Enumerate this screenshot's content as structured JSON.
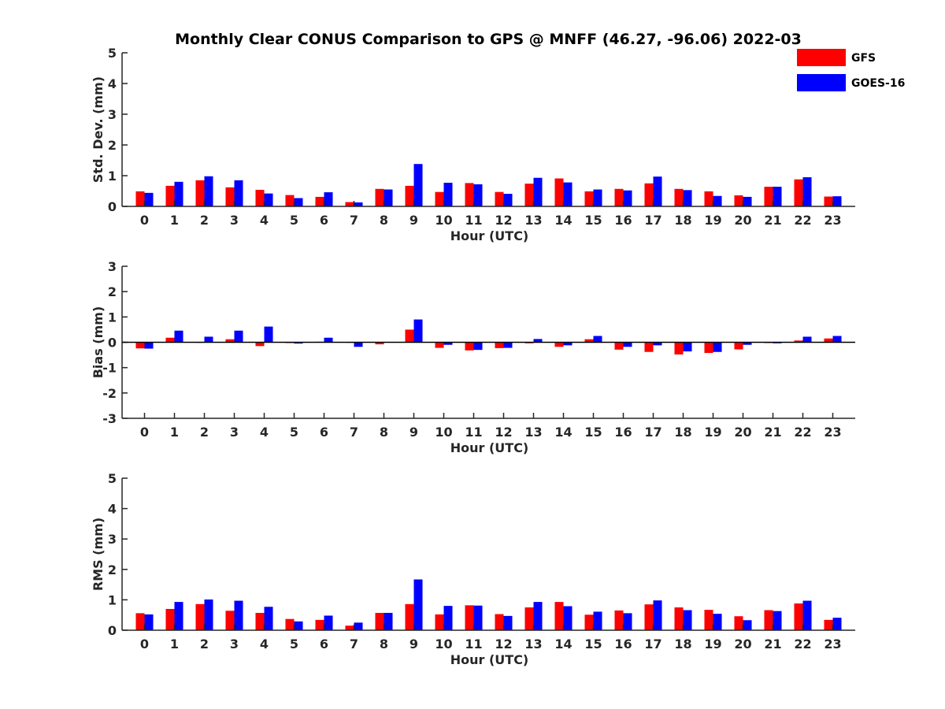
{
  "title": "Monthly Clear CONUS Comparison to GPS @ MNFF (46.27, -96.06) 2022-03",
  "colors": {
    "GFS": "#ff0000",
    "GOES-16": "#0000ff",
    "axis": "#262626"
  },
  "legend": {
    "placement": "top-right",
    "items": [
      "GFS",
      "GOES-16"
    ]
  },
  "chart_data": [
    {
      "type": "bar",
      "xlabel": "Hour (UTC)",
      "ylabel": "Std. Dev. (mm)",
      "ylim": [
        0,
        5
      ],
      "yticks": [
        0,
        1,
        2,
        3,
        4,
        5
      ],
      "categories": [
        "0",
        "1",
        "2",
        "3",
        "4",
        "5",
        "6",
        "7",
        "8",
        "9",
        "10",
        "11",
        "12",
        "13",
        "14",
        "15",
        "16",
        "17",
        "18",
        "19",
        "20",
        "21",
        "22",
        "23"
      ],
      "series": [
        {
          "name": "GFS",
          "values": [
            0.49,
            0.67,
            0.85,
            0.62,
            0.54,
            0.37,
            0.31,
            0.14,
            0.57,
            0.67,
            0.47,
            0.76,
            0.47,
            0.74,
            0.91,
            0.49,
            0.57,
            0.75,
            0.57,
            0.49,
            0.36,
            0.64,
            0.88,
            0.32
          ]
        },
        {
          "name": "GOES-16",
          "values": [
            0.44,
            0.8,
            0.98,
            0.85,
            0.42,
            0.27,
            0.46,
            0.13,
            0.55,
            1.38,
            0.77,
            0.72,
            0.41,
            0.93,
            0.78,
            0.55,
            0.52,
            0.97,
            0.53,
            0.34,
            0.31,
            0.64,
            0.95,
            0.33
          ]
        }
      ]
    },
    {
      "type": "bar",
      "xlabel": "Hour (UTC)",
      "ylabel": "Bias (mm)",
      "ylim": [
        -3,
        3
      ],
      "yticks": [
        -3,
        -2,
        -1,
        0,
        1,
        2,
        3
      ],
      "categories": [
        "0",
        "1",
        "2",
        "3",
        "4",
        "5",
        "6",
        "7",
        "8",
        "9",
        "10",
        "11",
        "12",
        "13",
        "14",
        "15",
        "16",
        "17",
        "18",
        "19",
        "20",
        "21",
        "22",
        "23"
      ],
      "series": [
        {
          "name": "GFS",
          "values": [
            -0.24,
            0.18,
            -0.02,
            0.12,
            -0.15,
            -0.03,
            0.02,
            -0.02,
            -0.08,
            0.5,
            -0.22,
            -0.32,
            -0.23,
            -0.04,
            -0.18,
            0.12,
            -0.29,
            -0.38,
            -0.48,
            -0.42,
            -0.28,
            -0.03,
            0.07,
            0.15
          ]
        },
        {
          "name": "GOES-16",
          "values": [
            -0.25,
            0.46,
            0.22,
            0.46,
            0.62,
            -0.05,
            0.18,
            -0.18,
            0.0,
            0.9,
            -0.1,
            -0.3,
            -0.22,
            0.13,
            -0.12,
            0.25,
            -0.18,
            -0.12,
            -0.36,
            -0.38,
            -0.1,
            -0.04,
            0.22,
            0.25
          ]
        }
      ]
    },
    {
      "type": "bar",
      "xlabel": "Hour (UTC)",
      "ylabel": "RMS (mm)",
      "ylim": [
        0,
        5
      ],
      "yticks": [
        0,
        1,
        2,
        3,
        4,
        5
      ],
      "categories": [
        "0",
        "1",
        "2",
        "3",
        "4",
        "5",
        "6",
        "7",
        "8",
        "9",
        "10",
        "11",
        "12",
        "13",
        "14",
        "15",
        "16",
        "17",
        "18",
        "19",
        "20",
        "21",
        "22",
        "23"
      ],
      "series": [
        {
          "name": "GFS",
          "values": [
            0.56,
            0.7,
            0.86,
            0.64,
            0.57,
            0.37,
            0.34,
            0.15,
            0.57,
            0.86,
            0.52,
            0.82,
            0.53,
            0.75,
            0.93,
            0.51,
            0.65,
            0.85,
            0.75,
            0.67,
            0.46,
            0.66,
            0.88,
            0.34
          ]
        },
        {
          "name": "GOES-16",
          "values": [
            0.52,
            0.93,
            1.01,
            0.97,
            0.77,
            0.29,
            0.48,
            0.25,
            0.57,
            1.67,
            0.8,
            0.81,
            0.47,
            0.93,
            0.79,
            0.61,
            0.56,
            0.98,
            0.66,
            0.54,
            0.33,
            0.63,
            0.97,
            0.41
          ]
        }
      ]
    }
  ]
}
